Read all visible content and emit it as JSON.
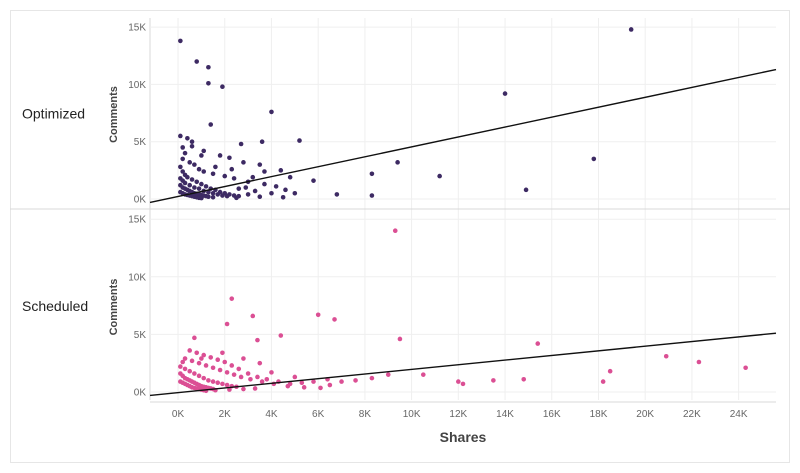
{
  "chart_data": {
    "type": "scatter",
    "x_label": "Shares",
    "y_label": "Comments",
    "x_ticks": [
      "0K",
      "2K",
      "4K",
      "6K",
      "8K",
      "10K",
      "12K",
      "14K",
      "16K",
      "18K",
      "20K",
      "22K",
      "24K"
    ],
    "y_ticks": [
      "0K",
      "5K",
      "10K",
      "15K"
    ],
    "xlim": [
      -1200,
      25600
    ],
    "ylim": [
      -700,
      15800
    ],
    "panels": [
      {
        "name": "Optimized",
        "color": "#3d2a63",
        "trend": {
          "x0": -1200,
          "y0": -300,
          "x1": 25600,
          "y1": 11300
        },
        "points": [
          [
            100,
            13800
          ],
          [
            800,
            12000
          ],
          [
            1300,
            11500
          ],
          [
            1300,
            10100
          ],
          [
            1900,
            9800
          ],
          [
            1400,
            6500
          ],
          [
            2700,
            4800
          ],
          [
            4000,
            7600
          ],
          [
            14000,
            9200
          ],
          [
            19400,
            14800
          ],
          [
            100,
            5500
          ],
          [
            400,
            5300
          ],
          [
            600,
            5000
          ],
          [
            1100,
            4200
          ],
          [
            1800,
            3800
          ],
          [
            2200,
            3600
          ],
          [
            2800,
            3200
          ],
          [
            3500,
            3000
          ],
          [
            4400,
            2500
          ],
          [
            4800,
            1900
          ],
          [
            5200,
            5100
          ],
          [
            3600,
            5000
          ],
          [
            9400,
            3200
          ],
          [
            17800,
            3500
          ],
          [
            8300,
            2200
          ],
          [
            11200,
            2000
          ],
          [
            14900,
            800
          ],
          [
            6800,
            400
          ],
          [
            8300,
            300
          ],
          [
            5800,
            1600
          ],
          [
            300,
            4000
          ],
          [
            200,
            3500
          ],
          [
            500,
            3200
          ],
          [
            700,
            3000
          ],
          [
            900,
            2600
          ],
          [
            1100,
            2400
          ],
          [
            1500,
            2200
          ],
          [
            2000,
            2000
          ],
          [
            2400,
            1800
          ],
          [
            3000,
            1500
          ],
          [
            3200,
            1900
          ],
          [
            3700,
            1300
          ],
          [
            4200,
            1100
          ],
          [
            4600,
            800
          ],
          [
            5000,
            500
          ],
          [
            3300,
            700
          ],
          [
            2600,
            900
          ],
          [
            100,
            2800
          ],
          [
            200,
            2400
          ],
          [
            300,
            2100
          ],
          [
            400,
            1900
          ],
          [
            600,
            1700
          ],
          [
            800,
            1500
          ],
          [
            1000,
            1300
          ],
          [
            1200,
            1100
          ],
          [
            1400,
            900
          ],
          [
            1600,
            800
          ],
          [
            1800,
            600
          ],
          [
            2000,
            500
          ],
          [
            2200,
            400
          ],
          [
            2400,
            300
          ],
          [
            2600,
            250
          ],
          [
            100,
            1800
          ],
          [
            200,
            1600
          ],
          [
            300,
            1400
          ],
          [
            500,
            1200
          ],
          [
            700,
            1000
          ],
          [
            900,
            900
          ],
          [
            1100,
            700
          ],
          [
            1300,
            600
          ],
          [
            1500,
            500
          ],
          [
            1700,
            400
          ],
          [
            1900,
            300
          ],
          [
            2100,
            250
          ],
          [
            100,
            1200
          ],
          [
            200,
            1000
          ],
          [
            300,
            900
          ],
          [
            400,
            800
          ],
          [
            500,
            700
          ],
          [
            600,
            600
          ],
          [
            700,
            500
          ],
          [
            800,
            450
          ],
          [
            900,
            400
          ],
          [
            1000,
            350
          ],
          [
            1100,
            300
          ],
          [
            1200,
            250
          ],
          [
            1300,
            200
          ],
          [
            100,
            600
          ],
          [
            200,
            500
          ],
          [
            300,
            400
          ],
          [
            400,
            350
          ],
          [
            500,
            300
          ],
          [
            600,
            250
          ],
          [
            700,
            200
          ],
          [
            800,
            150
          ],
          [
            900,
            100
          ],
          [
            1000,
            80
          ],
          [
            1500,
            150
          ],
          [
            2500,
            100
          ],
          [
            3500,
            200
          ],
          [
            4500,
            150
          ],
          [
            3000,
            400
          ],
          [
            4000,
            500
          ],
          [
            3700,
            2400
          ],
          [
            2900,
            1000
          ],
          [
            1000,
            3800
          ],
          [
            1600,
            2800
          ],
          [
            2300,
            2600
          ],
          [
            200,
            4500
          ],
          [
            600,
            4600
          ]
        ]
      },
      {
        "name": "Scheduled",
        "color": "#db4f94",
        "trend": {
          "x0": -1200,
          "y0": -300,
          "x1": 25600,
          "y1": 5100
        },
        "points": [
          [
            9300,
            14000
          ],
          [
            2300,
            8100
          ],
          [
            2100,
            5900
          ],
          [
            6000,
            6700
          ],
          [
            6700,
            6300
          ],
          [
            3200,
            6600
          ],
          [
            700,
            4700
          ],
          [
            3400,
            4500
          ],
          [
            4400,
            4900
          ],
          [
            9500,
            4600
          ],
          [
            15400,
            4200
          ],
          [
            20900,
            3100
          ],
          [
            22300,
            2600
          ],
          [
            24300,
            2100
          ],
          [
            18500,
            1800
          ],
          [
            18200,
            900
          ],
          [
            14800,
            1100
          ],
          [
            13500,
            1000
          ],
          [
            12000,
            900
          ],
          [
            10500,
            1500
          ],
          [
            9000,
            1500
          ],
          [
            8300,
            1200
          ],
          [
            7600,
            1000
          ],
          [
            7000,
            900
          ],
          [
            6400,
            1100
          ],
          [
            5800,
            900
          ],
          [
            5300,
            800
          ],
          [
            4800,
            700
          ],
          [
            4300,
            900
          ],
          [
            3800,
            1100
          ],
          [
            3400,
            1300
          ],
          [
            3000,
            1600
          ],
          [
            2600,
            2000
          ],
          [
            2300,
            2300
          ],
          [
            2000,
            2600
          ],
          [
            1700,
            2800
          ],
          [
            1400,
            3000
          ],
          [
            1100,
            3200
          ],
          [
            800,
            3400
          ],
          [
            500,
            3600
          ],
          [
            300,
            2900
          ],
          [
            600,
            2700
          ],
          [
            900,
            2500
          ],
          [
            1200,
            2300
          ],
          [
            1500,
            2100
          ],
          [
            1800,
            1900
          ],
          [
            2100,
            1700
          ],
          [
            2400,
            1500
          ],
          [
            2700,
            1300
          ],
          [
            3100,
            1100
          ],
          [
            3600,
            900
          ],
          [
            4100,
            700
          ],
          [
            4700,
            500
          ],
          [
            5400,
            400
          ],
          [
            6100,
            350
          ],
          [
            100,
            2200
          ],
          [
            300,
            2000
          ],
          [
            500,
            1800
          ],
          [
            700,
            1600
          ],
          [
            900,
            1400
          ],
          [
            1100,
            1200
          ],
          [
            1300,
            1000
          ],
          [
            1500,
            900
          ],
          [
            1700,
            800
          ],
          [
            1900,
            700
          ],
          [
            2100,
            600
          ],
          [
            2300,
            500
          ],
          [
            2500,
            450
          ],
          [
            100,
            1600
          ],
          [
            200,
            1400
          ],
          [
            300,
            1200
          ],
          [
            400,
            1100
          ],
          [
            500,
            1000
          ],
          [
            600,
            900
          ],
          [
            700,
            800
          ],
          [
            800,
            700
          ],
          [
            900,
            600
          ],
          [
            1000,
            500
          ],
          [
            1100,
            450
          ],
          [
            1200,
            400
          ],
          [
            1300,
            350
          ],
          [
            1400,
            300
          ],
          [
            1500,
            250
          ],
          [
            100,
            900
          ],
          [
            200,
            800
          ],
          [
            300,
            700
          ],
          [
            400,
            600
          ],
          [
            500,
            500
          ],
          [
            600,
            400
          ],
          [
            700,
            350
          ],
          [
            800,
            300
          ],
          [
            900,
            250
          ],
          [
            1000,
            200
          ],
          [
            1100,
            150
          ],
          [
            1200,
            100
          ],
          [
            1600,
            150
          ],
          [
            2200,
            200
          ],
          [
            2800,
            250
          ],
          [
            3300,
            300
          ],
          [
            200,
            2600
          ],
          [
            4000,
            1700
          ],
          [
            5000,
            1300
          ],
          [
            2800,
            2900
          ],
          [
            1900,
            3400
          ],
          [
            1000,
            2900
          ],
          [
            3500,
            2500
          ],
          [
            12200,
            700
          ],
          [
            6500,
            600
          ]
        ]
      }
    ]
  }
}
